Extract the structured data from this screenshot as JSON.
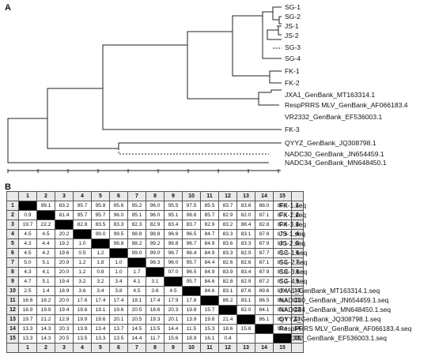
{
  "panels": {
    "a": "A",
    "b": "B"
  },
  "tree": {
    "taxa": [
      "SG-1",
      "SG-2",
      "JS-1",
      "JS-2",
      "SG-3",
      "SG-4",
      "FK-1",
      "FK-2",
      "JXA1_GenBank_MT163314.1",
      "RespPRRS MLV_GenBank_AF066183.4",
      "VR2332_GenBank_EF536003.1",
      "FK-3",
      "QYYZ_GenBank_JQ308798.1",
      "NADC30_GenBank_JN654459.1",
      "NADC34_GenBank_MN648450.1"
    ]
  },
  "matrix": {
    "col_headers": [
      "1",
      "2",
      "3",
      "4",
      "5",
      "6",
      "7",
      "8",
      "9",
      "10",
      "11",
      "12",
      "13",
      "14",
      "15"
    ],
    "row_headers": [
      "1",
      "2",
      "3",
      "4",
      "5",
      "6",
      "7",
      "8",
      "9",
      "10",
      "11",
      "12",
      "13",
      "14",
      "15"
    ],
    "rows": [
      [
        "",
        "99.1",
        "83.2",
        "95.7",
        "95.8",
        "95.6",
        "95.2",
        "96.0",
        "95.5",
        "97.5",
        "85.5",
        "83.7",
        "83.6",
        "88.0",
        "88.0"
      ],
      [
        "0.9",
        "",
        "81.4",
        "95.7",
        "95.7",
        "96.0",
        "95.1",
        "96.0",
        "95.1",
        "98.6",
        "85.7",
        "82.9",
        "82.0",
        "87.1",
        "87.1"
      ],
      [
        "19.7",
        "22.2",
        "",
        "82.8",
        "83.5",
        "83.3",
        "82.3",
        "82.9",
        "83.4",
        "83.7",
        "82.9",
        "83.2",
        "88.4",
        "82.8",
        "82.6"
      ],
      [
        "4.5",
        "4.5",
        "20.2",
        "",
        "99.0",
        "99.5",
        "98.8",
        "98.8",
        "96.8",
        "96.5",
        "84.7",
        "83.3",
        "83.1",
        "87.6",
        "87.6"
      ],
      [
        "4.3",
        "4.4",
        "19.2",
        "1.0",
        "",
        "98.8",
        "98.2",
        "99.2",
        "96.8",
        "96.7",
        "84.9",
        "83.6",
        "83.3",
        "87.9",
        "88.1"
      ],
      [
        "4.5",
        "4.2",
        "19.6",
        "0.5",
        "1.2",
        "",
        "99.0",
        "99.0",
        "96.7",
        "96.4",
        "84.9",
        "83.3",
        "82.9",
        "87.7",
        "87.7"
      ],
      [
        "5.0",
        "5.1",
        "20.9",
        "1.2",
        "1.8",
        "1.0",
        "",
        "98.3",
        "96.0",
        "95.7",
        "84.4",
        "82.6",
        "82.6",
        "87.1",
        "87.1"
      ],
      [
        "4.3",
        "4.1",
        "20.0",
        "1.2",
        "0.8",
        "1.0",
        "1.7",
        "",
        "97.0",
        "96.5",
        "84.9",
        "83.9",
        "83.4",
        "87.9",
        "87.9"
      ],
      [
        "4.7",
        "5.1",
        "19.4",
        "3.2",
        "3.2",
        "3.4",
        "4.1",
        "3.1",
        "",
        "95.7",
        "84.6",
        "82.8",
        "82.9",
        "87.2",
        "87.2"
      ],
      [
        "2.5",
        "1.4",
        "18.9",
        "3.6",
        "3.4",
        "3.8",
        "4.5",
        "3.6",
        "4.5",
        "",
        "84.6",
        "83.1",
        "87.6",
        "89.6",
        "89.4"
      ],
      [
        "16.6",
        "16.2",
        "20.0",
        "17.6",
        "17.4",
        "17.4",
        "18.1",
        "17.4",
        "17.9",
        "17.8",
        "",
        "86.2",
        "83.1",
        "86.5",
        "86.3"
      ],
      [
        "18.9",
        "19.9",
        "19.4",
        "19.6",
        "19.1",
        "19.6",
        "20.5",
        "18.6",
        "20.3",
        "19.8",
        "15.7",
        "",
        "82.0",
        "84.1",
        "83.9"
      ],
      [
        "19.7",
        "21.2",
        "12.9",
        "19.9",
        "19.6",
        "20.1",
        "20.5",
        "19.3",
        "20.1",
        "13.9",
        "19.8",
        "21.4",
        "",
        "86.1",
        "85.9"
      ],
      [
        "13.3",
        "14.3",
        "20.3",
        "13.9",
        "13.4",
        "13.7",
        "14.5",
        "13.5",
        "14.4",
        "11.5",
        "15.3",
        "18.6",
        "15.8",
        "",
        "99.6"
      ],
      [
        "13.3",
        "14.3",
        "20.5",
        "13.5",
        "13.3",
        "13.5",
        "14.4",
        "11.7",
        "15.6",
        "18.9",
        "16.1",
        "0.4",
        "",
        "",
        ""
      ]
    ],
    "sequence_names": [
      "FK-1.seq",
      "FK-2.seq",
      "FK-3.seq",
      "JS-1.seq",
      "JS-2.seq",
      "SG-1.seq",
      "SG-2.seq",
      "SG-3.seq",
      "SG-4.seq",
      "JXA1_GenBank_MT163314.1.seq",
      "NADC30_GenBank_JN654459.1.seq",
      "NADC34_GenBank_MN648450.1.seq",
      "QYYZ_GenBank_JQ308798.1.seq",
      "RespPRRS MLV_GenBank_AF066183.4.seq",
      "VR2332_GenBank_EF536003.1.seq"
    ]
  }
}
